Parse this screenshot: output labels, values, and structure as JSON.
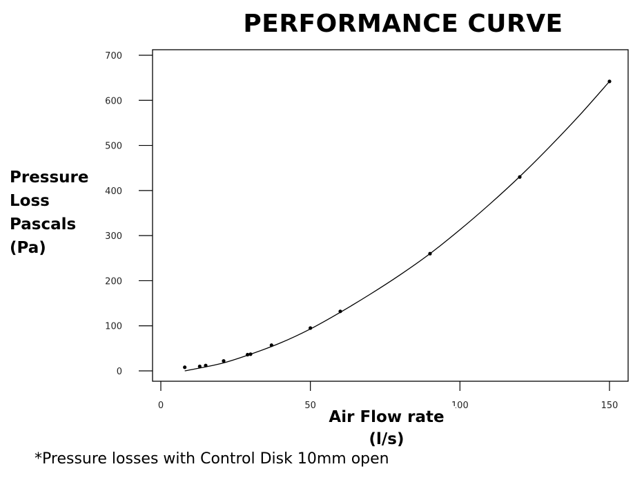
{
  "chart_data": {
    "type": "scatter",
    "title": "PERFORMANCE CURVE",
    "ylabel_lines": [
      "Pressure",
      "Loss",
      "Pascals",
      "(Pa)"
    ],
    "xlabel_lines": [
      "Air Flow rate",
      "(l/s)"
    ],
    "footnote": "*Pressure losses with Control Disk 10mm open",
    "xlim": [
      0,
      150
    ],
    "ylim": [
      0,
      700
    ],
    "x_ticks": [
      0,
      50,
      100,
      150
    ],
    "y_ticks": [
      0,
      100,
      200,
      300,
      400,
      500,
      600,
      700
    ],
    "grid": false,
    "series": [
      {
        "points": [
          {
            "x": 8,
            "y": 8
          },
          {
            "x": 13,
            "y": 10
          },
          {
            "x": 15,
            "y": 12
          },
          {
            "x": 21,
            "y": 22
          },
          {
            "x": 29,
            "y": 36
          },
          {
            "x": 30,
            "y": 37
          },
          {
            "x": 37,
            "y": 57
          },
          {
            "x": 50,
            "y": 95
          },
          {
            "x": 60,
            "y": 132
          },
          {
            "x": 90,
            "y": 260
          },
          {
            "x": 120,
            "y": 430
          },
          {
            "x": 150,
            "y": 642
          }
        ],
        "fit_curve": [
          {
            "x": 8,
            "y": 0
          },
          {
            "x": 20,
            "y": 16
          },
          {
            "x": 30,
            "y": 37
          },
          {
            "x": 40,
            "y": 62
          },
          {
            "x": 50,
            "y": 93
          },
          {
            "x": 60,
            "y": 130
          },
          {
            "x": 70,
            "y": 170
          },
          {
            "x": 80,
            "y": 213
          },
          {
            "x": 90,
            "y": 260
          },
          {
            "x": 100,
            "y": 313
          },
          {
            "x": 110,
            "y": 370
          },
          {
            "x": 120,
            "y": 431
          },
          {
            "x": 130,
            "y": 497
          },
          {
            "x": 140,
            "y": 567
          },
          {
            "x": 150,
            "y": 642
          }
        ],
        "color": "#000000"
      }
    ]
  }
}
